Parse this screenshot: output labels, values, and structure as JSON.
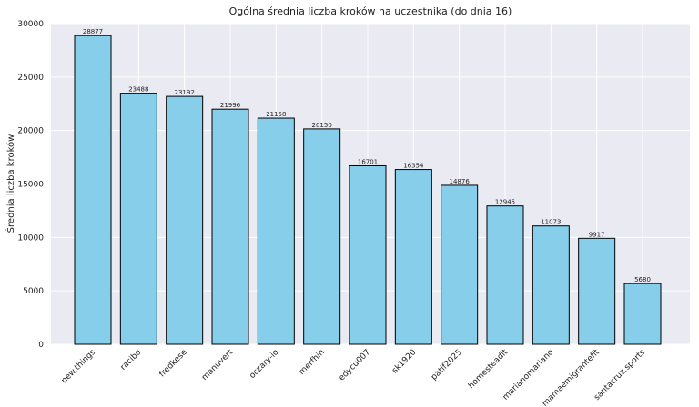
{
  "chart_data": {
    "type": "bar",
    "title": "Ogólna średnia liczba kroków na uczestnika (do dnia 16)",
    "xlabel": "",
    "ylabel": "Średnia liczba kroków",
    "ylim": [
      0,
      30000
    ],
    "yticks": [
      0,
      5000,
      10000,
      15000,
      20000,
      25000,
      30000
    ],
    "grid": true,
    "bar_color": "#87CEEB",
    "bar_edge_color": "#000000",
    "background_color": "#EAEAF2",
    "categories": [
      "new.things",
      "racibo",
      "fredkese",
      "manuvert",
      "oczary-io",
      "merfhin",
      "edycu007",
      "sk1920",
      "patif2025",
      "homesteadit",
      "marianomariano",
      "mamaemigrantefit",
      "santacruz.sports"
    ],
    "values": [
      28877,
      23488,
      23192,
      21996,
      21158,
      20150,
      16701,
      16354,
      14876,
      12945,
      11073,
      9917,
      5680
    ]
  }
}
